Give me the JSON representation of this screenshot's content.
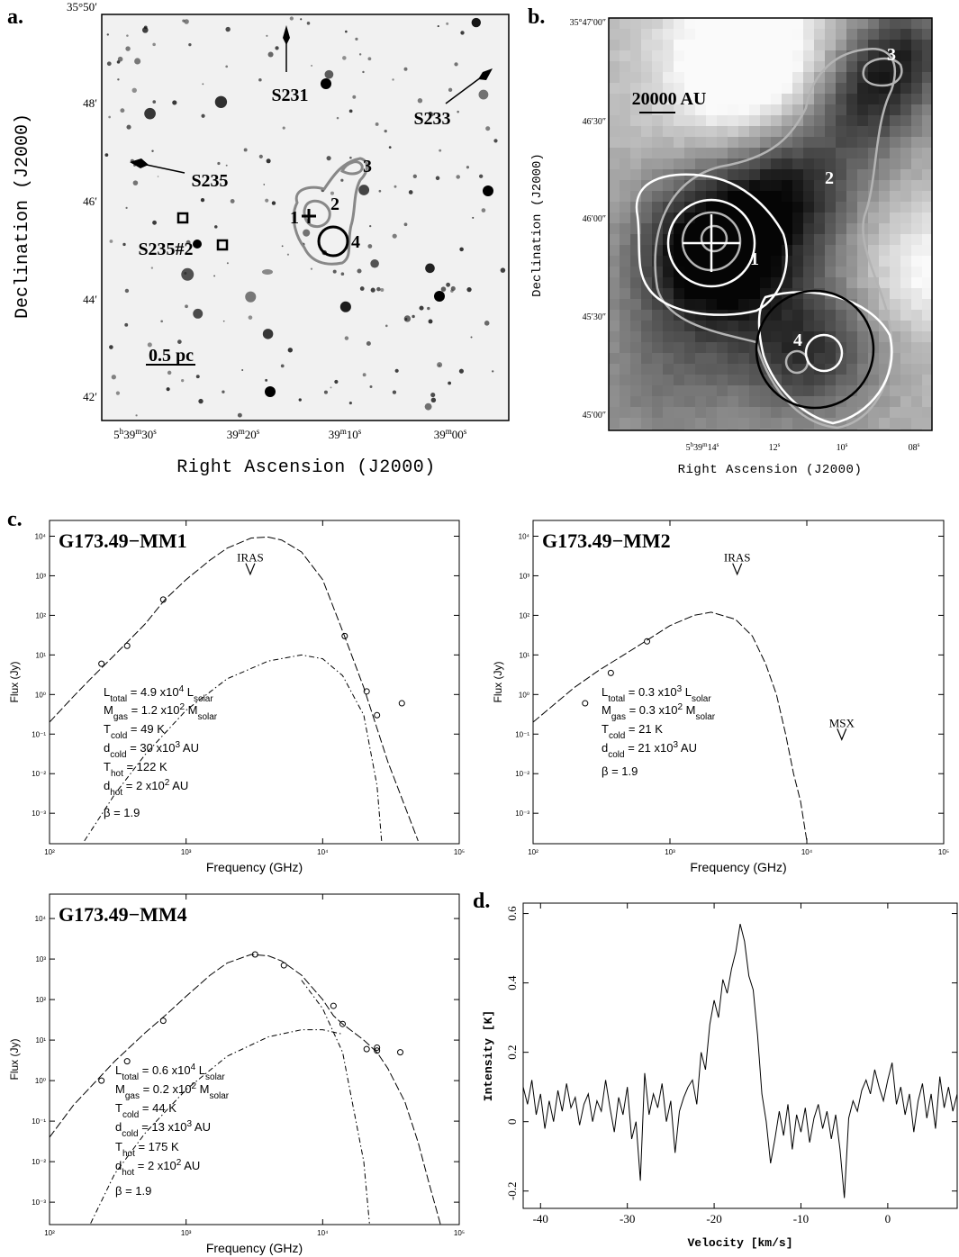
{
  "chart_data": [
    {
      "type": "image",
      "label": "a.",
      "xlabel": "Right Ascension (J2000)",
      "ylabel": "Declination (J2000)",
      "xtick_labels": [
        "5h39m30s",
        "39m20s",
        "39m10s",
        "39m00s"
      ],
      "ytick_labels": [
        "35°50′",
        "48′",
        "46′",
        "44′",
        "42′"
      ],
      "annotations": [
        "S231",
        "S233",
        "S235",
        "S235#2",
        "1",
        "2",
        "3",
        "4",
        "0.5 pc"
      ]
    },
    {
      "type": "image",
      "label": "b.",
      "xlabel": "Right Ascension (J2000)",
      "ylabel": "Declination (J2000)",
      "xtick_labels": [
        "5h39m14s",
        "12s",
        "10s",
        "08s"
      ],
      "ytick_labels": [
        "35°47′00″",
        "46′30″",
        "46′00″",
        "45′30″",
        "45′00″"
      ],
      "annotations": [
        "20000 AU",
        "1",
        "2",
        "3",
        "4"
      ]
    },
    {
      "type": "line",
      "label": "c.",
      "title": "G173.49−MM1",
      "xlabel": "Frequency (GHz)",
      "ylabel": "Flux (Jy)",
      "logx": true,
      "logy": true,
      "xlim": [
        100,
        100000
      ],
      "ylim": [
        0.00017,
        25000
      ],
      "xticks": [
        {
          "value": 100,
          "label": "10²"
        },
        {
          "value": 1000,
          "label": "10³"
        },
        {
          "value": 10000,
          "label": "10⁴"
        },
        {
          "value": 100000,
          "label": "10⁵"
        }
      ],
      "yticks": [
        {
          "value": 0.001,
          "label": "10⁻³"
        },
        {
          "value": 0.01,
          "label": "10⁻²"
        },
        {
          "value": 0.1,
          "label": "10⁻¹"
        },
        {
          "value": 1,
          "label": "10⁰"
        },
        {
          "value": 10,
          "label": "10¹"
        },
        {
          "value": 100,
          "label": "10²"
        },
        {
          "value": 1000,
          "label": "10³"
        },
        {
          "value": 10000,
          "label": "10⁴"
        }
      ],
      "series": [
        {
          "style": "dashed",
          "color": "#000000",
          "x": [
            100,
            150,
            200,
            300,
            500,
            700,
            1000,
            1500,
            2000,
            3000,
            4000,
            5000,
            7000,
            10000,
            14000,
            20000,
            30000,
            40000,
            50000
          ],
          "values": [
            0.2,
            0.9,
            2.5,
            10,
            60,
            250,
            800,
            2500,
            5000,
            9000,
            9500,
            8000,
            4000,
            800,
            40,
            1.5,
            0.02,
            0.0015,
            0.0002
          ]
        },
        {
          "style": "dashdot",
          "color": "#000000",
          "x": [
            180,
            300,
            500,
            1000,
            2000,
            4000,
            7000,
            10000,
            14000,
            20000,
            25000,
            27000
          ],
          "values": [
            0.0002,
            0.003,
            0.03,
            0.4,
            2.5,
            7,
            10,
            8,
            3,
            0.3,
            0.005,
            0.0002
          ]
        },
        {
          "style": "markers",
          "color": "#000000",
          "x": [
            240,
            370,
            680,
            14500,
            21000,
            25000,
            38000
          ],
          "values": [
            6,
            17,
            250,
            30,
            1.2,
            0.3,
            0.6
          ]
        }
      ],
      "limits": [
        {
          "label": "IRAS",
          "x": 2950,
          "value": 1500
        }
      ],
      "annotations": [
        [
          {
            "text": "L"
          },
          {
            "text": "total",
            "shift": "sub"
          },
          {
            "text": " = 4.9 x10"
          },
          {
            "text": "4",
            "shift": "sup"
          },
          {
            "text": " L"
          },
          {
            "text": "solar",
            "shift": "sub"
          }
        ],
        [
          {
            "text": "M"
          },
          {
            "text": "gas",
            "shift": "sub"
          },
          {
            "text": " = 1.2 x10"
          },
          {
            "text": "2",
            "shift": "sup"
          },
          {
            "text": " M"
          },
          {
            "text": "solar",
            "shift": "sub"
          }
        ],
        [
          {
            "text": "T"
          },
          {
            "text": "cold",
            "shift": "sub"
          },
          {
            "text": " = 49 K"
          }
        ],
        [
          {
            "text": "d"
          },
          {
            "text": "cold",
            "shift": "sub"
          },
          {
            "text": " = 30 x10"
          },
          {
            "text": "3",
            "shift": "sup"
          },
          {
            "text": " AU"
          }
        ],
        [
          {
            "text": "T"
          },
          {
            "text": "hot",
            "shift": "sub"
          },
          {
            "text": " = 122 K"
          }
        ],
        [
          {
            "text": "d"
          },
          {
            "text": "hot",
            "shift": "sub"
          },
          {
            "text": " = 2 x10"
          },
          {
            "text": "2",
            "shift": "sup"
          },
          {
            "text": " AU"
          }
        ],
        [
          {
            "text": "β = 1.9"
          }
        ]
      ]
    },
    {
      "type": "line",
      "title": "G173.49−MM2",
      "xlabel": "Frequency (GHz)",
      "ylabel": "Flux (Jy)",
      "logx": true,
      "logy": true,
      "xlim": [
        100,
        100000
      ],
      "ylim": [
        0.00017,
        25000
      ],
      "xticks": [
        {
          "value": 100,
          "label": "10²"
        },
        {
          "value": 1000,
          "label": "10³"
        },
        {
          "value": 10000,
          "label": "10⁴"
        },
        {
          "value": 100000,
          "label": "10⁵"
        }
      ],
      "yticks": [
        {
          "value": 0.001,
          "label": "10⁻³"
        },
        {
          "value": 0.01,
          "label": "10⁻²"
        },
        {
          "value": 0.1,
          "label": "10⁻¹"
        },
        {
          "value": 1,
          "label": "10⁰"
        },
        {
          "value": 10,
          "label": "10¹"
        },
        {
          "value": 100,
          "label": "10²"
        },
        {
          "value": 1000,
          "label": "10³"
        },
        {
          "value": 10000,
          "label": "10⁴"
        }
      ],
      "series": [
        {
          "style": "dashed",
          "color": "#000000",
          "x": [
            100,
            200,
            300,
            500,
            700,
            1000,
            1500,
            2000,
            3000,
            4000,
            5000,
            6000,
            7000,
            8000,
            9000,
            10000
          ],
          "values": [
            0.2,
            1.5,
            4,
            12,
            25,
            55,
            100,
            120,
            80,
            30,
            6,
            1,
            0.1,
            0.01,
            0.002,
            0.0002
          ]
        },
        {
          "style": "markers",
          "color": "#000000",
          "x": [
            240,
            370,
            680
          ],
          "values": [
            0.6,
            3.5,
            22
          ]
        }
      ],
      "limits": [
        {
          "label": "IRAS",
          "x": 3100,
          "value": 1500
        },
        {
          "label": "MSX",
          "x": 18000,
          "value": 0.1
        }
      ],
      "annotations": [
        [
          {
            "text": "L"
          },
          {
            "text": "total",
            "shift": "sub"
          },
          {
            "text": " = 0.3 x10"
          },
          {
            "text": "3",
            "shift": "sup"
          },
          {
            "text": " L"
          },
          {
            "text": "solar",
            "shift": "sub"
          }
        ],
        [
          {
            "text": "M"
          },
          {
            "text": "gas",
            "shift": "sub"
          },
          {
            "text": " = 0.3 x10"
          },
          {
            "text": "2",
            "shift": "sup"
          },
          {
            "text": " M"
          },
          {
            "text": "solar",
            "shift": "sub"
          }
        ],
        [
          {
            "text": "T"
          },
          {
            "text": "cold",
            "shift": "sub"
          },
          {
            "text": " = 21 K"
          }
        ],
        [
          {
            "text": "d"
          },
          {
            "text": "cold",
            "shift": "sub"
          },
          {
            "text": " = 21 x10"
          },
          {
            "text": "3",
            "shift": "sup"
          },
          {
            "text": " AU"
          }
        ],
        [
          {
            "text": "β = 1.9"
          }
        ]
      ]
    },
    {
      "type": "line",
      "title": "G173.49−MM4",
      "xlabel": "Frequency (GHz)",
      "ylabel": "Flux (Jy)",
      "logx": true,
      "logy": true,
      "xlim": [
        100,
        100000
      ],
      "ylim": [
        0.00028,
        40000
      ],
      "xticks": [
        {
          "value": 100,
          "label": "10²"
        },
        {
          "value": 1000,
          "label": "10³"
        },
        {
          "value": 10000,
          "label": "10⁴"
        },
        {
          "value": 100000,
          "label": "10⁵"
        }
      ],
      "yticks": [
        {
          "value": 0.001,
          "label": "10⁻³"
        },
        {
          "value": 0.01,
          "label": "10⁻²"
        },
        {
          "value": 0.1,
          "label": "10⁻¹"
        },
        {
          "value": 1,
          "label": "10⁰"
        },
        {
          "value": 10,
          "label": "10¹"
        },
        {
          "value": 100,
          "label": "10²"
        },
        {
          "value": 1000,
          "label": "10³"
        },
        {
          "value": 10000,
          "label": "10⁴"
        }
      ],
      "series": [
        {
          "style": "dashed",
          "color": "#000000",
          "x": [
            100,
            150,
            200,
            300,
            500,
            700,
            1000,
            1500,
            2000,
            3000,
            4000,
            5000,
            7000,
            10000,
            12000,
            14000,
            20000,
            25000,
            30000,
            40000,
            50000,
            60000,
            75000
          ],
          "values": [
            0.04,
            0.25,
            0.7,
            3,
            15,
            40,
            120,
            400,
            800,
            1300,
            1200,
            900,
            400,
            100,
            40,
            25,
            10,
            5,
            2,
            0.3,
            0.03,
            0.003,
            0.0002
          ]
        },
        {
          "style": "dashdot",
          "color": "#000000",
          "x": [
            200,
            300,
            500,
            1000,
            2000,
            4000,
            7000,
            10000,
            14000
          ],
          "values": [
            0.0003,
            0.005,
            0.05,
            0.6,
            4,
            12,
            18,
            18,
            14
          ]
        },
        {
          "style": "dashdot",
          "color": "#000000",
          "x": [
            7000,
            10000,
            14000,
            20000,
            22000
          ],
          "values": [
            300,
            60,
            5,
            0.01,
            0.0003
          ]
        },
        {
          "style": "markers",
          "color": "#000000",
          "x": [
            240,
            370,
            680,
            3200,
            5200,
            12000,
            14000,
            21000,
            25000,
            25000,
            37000
          ],
          "values": [
            1,
            3,
            30,
            1300,
            700,
            70,
            25,
            6,
            6.5,
            5.5,
            5
          ]
        }
      ],
      "limits": [],
      "annotations": [
        [
          {
            "text": "L"
          },
          {
            "text": "total",
            "shift": "sub"
          },
          {
            "text": " = 0.6 x10"
          },
          {
            "text": "4",
            "shift": "sup"
          },
          {
            "text": " L"
          },
          {
            "text": "solar",
            "shift": "sub"
          }
        ],
        [
          {
            "text": "M"
          },
          {
            "text": "gas",
            "shift": "sub"
          },
          {
            "text": " = 0.2 x10"
          },
          {
            "text": "2",
            "shift": "sup"
          },
          {
            "text": " M"
          },
          {
            "text": "solar",
            "shift": "sub"
          }
        ],
        [
          {
            "text": "T"
          },
          {
            "text": "cold",
            "shift": "sub"
          },
          {
            "text": " = 44 K"
          }
        ],
        [
          {
            "text": "d"
          },
          {
            "text": "cold",
            "shift": "sub"
          },
          {
            "text": " = 13 x10"
          },
          {
            "text": "3",
            "shift": "sup"
          },
          {
            "text": " AU"
          }
        ],
        [
          {
            "text": "T"
          },
          {
            "text": "hot",
            "shift": "sub"
          },
          {
            "text": " = 175 K"
          }
        ],
        [
          {
            "text": "d"
          },
          {
            "text": "hot",
            "shift": "sub"
          },
          {
            "text": " = 2 x10"
          },
          {
            "text": "2",
            "shift": "sup"
          },
          {
            "text": " AU"
          }
        ],
        [
          {
            "text": "β = 1.9"
          }
        ]
      ]
    },
    {
      "type": "line",
      "label": "d.",
      "xlabel": "Velocity  [km/s]",
      "ylabel": "Intensity [K]",
      "xlim": [
        -42,
        8
      ],
      "ylim": [
        -0.25,
        0.63
      ],
      "xticks": [
        -40,
        -30,
        -20,
        -10,
        0
      ],
      "yticks": [
        -0.2,
        0,
        0.2,
        0.4,
        0.6
      ],
      "series": [
        {
          "style": "solid",
          "color": "#000000",
          "x": [
            -42,
            -41.5,
            -41,
            -40.5,
            -40,
            -39.5,
            -39,
            -38.5,
            -38,
            -37.5,
            -37,
            -36.5,
            -36,
            -35.5,
            -35,
            -34.5,
            -34,
            -33.5,
            -33,
            -32.5,
            -32,
            -31.5,
            -31,
            -30.5,
            -30,
            -29.5,
            -29,
            -28.5,
            -28,
            -27.5,
            -27,
            -26.5,
            -26,
            -25.5,
            -25,
            -24.5,
            -24,
            -23.5,
            -23,
            -22.5,
            -22,
            -21.5,
            -21,
            -20.5,
            -20,
            -19.5,
            -19,
            -18.5,
            -18,
            -17.5,
            -17,
            -16.5,
            -16,
            -15.5,
            -15,
            -14.5,
            -14,
            -13.5,
            -13,
            -12.5,
            -12,
            -11.5,
            -11,
            -10.5,
            -10,
            -9.5,
            -9,
            -8.5,
            -8,
            -7.5,
            -7,
            -6.5,
            -6,
            -5.5,
            -5,
            -4.5,
            -4,
            -3.5,
            -3,
            -2.5,
            -2,
            -1.5,
            -1,
            -0.5,
            0,
            0.5,
            1,
            1.5,
            2,
            2.5,
            3,
            3.5,
            4,
            4.5,
            5,
            5.5,
            6,
            6.5,
            7,
            7.5,
            8
          ],
          "values": [
            0.1,
            0.05,
            0.12,
            0.02,
            0.08,
            -0.02,
            0.06,
            0.0,
            0.09,
            0.03,
            0.11,
            0.04,
            0.07,
            -0.01,
            0.05,
            0.08,
            0.0,
            0.06,
            0.03,
            0.12,
            0.04,
            -0.03,
            0.07,
            0.02,
            0.1,
            -0.05,
            0.0,
            -0.17,
            0.14,
            0.02,
            0.08,
            0.04,
            0.11,
            0.0,
            0.06,
            -0.09,
            0.03,
            0.07,
            0.1,
            0.12,
            0.05,
            0.2,
            0.15,
            0.28,
            0.35,
            0.3,
            0.41,
            0.37,
            0.44,
            0.49,
            0.57,
            0.52,
            0.42,
            0.38,
            0.25,
            0.08,
            0.0,
            -0.12,
            -0.05,
            0.03,
            -0.04,
            0.05,
            -0.08,
            0.02,
            -0.03,
            0.04,
            -0.06,
            0.01,
            0.05,
            -0.02,
            0.03,
            -0.05,
            0.02,
            -0.08,
            -0.22,
            0.01,
            0.06,
            0.03,
            0.09,
            0.12,
            0.08,
            0.15,
            0.1,
            0.06,
            0.12,
            0.17,
            0.05,
            0.1,
            0.02,
            0.08,
            -0.03,
            0.06,
            0.11,
            0.01,
            0.08,
            -0.02,
            0.13,
            0.04,
            0.1,
            0.03,
            0.08
          ]
        }
      ]
    }
  ]
}
